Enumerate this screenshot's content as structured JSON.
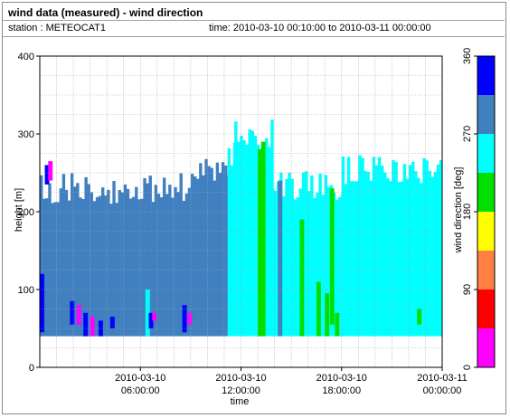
{
  "header": {
    "title": "wind data (measured) - wind direction",
    "station_label": "station : METEOCAT1",
    "time_label": "time: 2010-03-10 00:10:00 to 2010-03-11 00:00:00"
  },
  "chart_data": {
    "type": "heatmap",
    "title": "wind data (measured) - wind direction",
    "xlabel": "time",
    "ylabel": "height [m]",
    "colorbar_label": "wind direction [deg]",
    "xlim": [
      "2010-03-10 00:00:00",
      "2010-03-11 00:00:00"
    ],
    "ylim": [
      0,
      400
    ],
    "y_ticks": [
      0,
      100,
      200,
      300,
      400
    ],
    "x_ticks": [
      {
        "line1": "2010-03-10",
        "line2": "06:00:00",
        "hour": 6
      },
      {
        "line1": "2010-03-10",
        "line2": "12:00:00",
        "hour": 12
      },
      {
        "line1": "2010-03-10",
        "line2": "18:00:00",
        "hour": 18
      },
      {
        "line1": "2010-03-11",
        "line2": "00:00:00",
        "hour": 24
      }
    ],
    "colorbar_ticks": [
      0,
      90,
      180,
      270,
      360
    ],
    "colorbar_bins": [
      {
        "from": 0,
        "to": 45,
        "color": "#ff00ff"
      },
      {
        "from": 45,
        "to": 90,
        "color": "#ff0000"
      },
      {
        "from": 90,
        "to": 135,
        "color": "#ff8040"
      },
      {
        "from": 135,
        "to": 180,
        "color": "#ffff00"
      },
      {
        "from": 180,
        "to": 225,
        "color": "#00e000"
      },
      {
        "from": 225,
        "to": 270,
        "color": "#00ffff"
      },
      {
        "from": 270,
        "to": 315,
        "color": "#4080c0"
      },
      {
        "from": 315,
        "to": 360,
        "color": "#0000ff"
      }
    ],
    "grid": true,
    "data_regions": [
      {
        "from_hour": 0.0,
        "to_hour": 9.5,
        "value_deg": 290,
        "top_m": 230
      },
      {
        "from_hour": 9.5,
        "to_hour": 11.2,
        "value_deg": 290,
        "top_m": 255
      },
      {
        "from_hour": 11.2,
        "to_hour": 11.6,
        "value_deg": 245,
        "top_m": 270
      },
      {
        "from_hour": 11.6,
        "to_hour": 13.8,
        "value_deg": 250,
        "top_m": 300
      },
      {
        "from_hour": 13.8,
        "to_hour": 18.0,
        "value_deg": 250,
        "top_m": 235
      },
      {
        "from_hour": 18.0,
        "to_hour": 24.0,
        "value_deg": 250,
        "top_m": 255
      }
    ],
    "data_cells": [
      {
        "hour": 0.3,
        "from_m": 235,
        "to_m": 260,
        "value_deg": 330
      },
      {
        "hour": 0.5,
        "from_m": 240,
        "to_m": 265,
        "value_deg": 20
      },
      {
        "hour": 0.0,
        "from_m": 45,
        "to_m": 120,
        "value_deg": 330
      },
      {
        "hour": 1.8,
        "from_m": 55,
        "to_m": 85,
        "value_deg": 330
      },
      {
        "hour": 2.2,
        "from_m": 55,
        "to_m": 80,
        "value_deg": 20
      },
      {
        "hour": 2.6,
        "from_m": 40,
        "to_m": 70,
        "value_deg": 330
      },
      {
        "hour": 3.0,
        "from_m": 40,
        "to_m": 65,
        "value_deg": 20
      },
      {
        "hour": 3.5,
        "from_m": 40,
        "to_m": 60,
        "value_deg": 330
      },
      {
        "hour": 4.2,
        "from_m": 50,
        "to_m": 65,
        "value_deg": 330
      },
      {
        "hour": 6.3,
        "from_m": 40,
        "to_m": 100,
        "value_deg": 250
      },
      {
        "hour": 6.5,
        "from_m": 50,
        "to_m": 70,
        "value_deg": 330
      },
      {
        "hour": 6.7,
        "from_m": 60,
        "to_m": 70,
        "value_deg": 20
      },
      {
        "hour": 8.5,
        "from_m": 45,
        "to_m": 80,
        "value_deg": 330
      },
      {
        "hour": 8.8,
        "from_m": 55,
        "to_m": 70,
        "value_deg": 20
      },
      {
        "hour": 13.0,
        "from_m": 40,
        "to_m": 280,
        "value_deg": 200
      },
      {
        "hour": 13.2,
        "from_m": 40,
        "to_m": 290,
        "value_deg": 200
      },
      {
        "hour": 14.2,
        "from_m": 40,
        "to_m": 240,
        "value_deg": 300
      },
      {
        "hour": 15.5,
        "from_m": 40,
        "to_m": 190,
        "value_deg": 200
      },
      {
        "hour": 16.5,
        "from_m": 40,
        "to_m": 110,
        "value_deg": 200
      },
      {
        "hour": 17.0,
        "from_m": 40,
        "to_m": 95,
        "value_deg": 200
      },
      {
        "hour": 17.3,
        "from_m": 55,
        "to_m": 230,
        "value_deg": 200
      },
      {
        "hour": 17.6,
        "from_m": 40,
        "to_m": 70,
        "value_deg": 200
      },
      {
        "hour": 22.5,
        "from_m": 55,
        "to_m": 75,
        "value_deg": 200
      }
    ]
  }
}
